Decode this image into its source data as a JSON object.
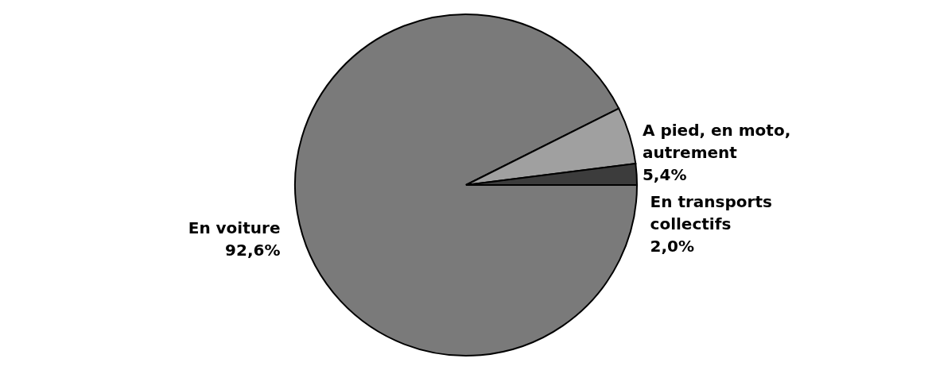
{
  "chart_data": {
    "type": "pie",
    "categories": [
      "En voiture",
      "A pied, en moto, autrement",
      "En transports collectifs"
    ],
    "values": [
      92.6,
      5.4,
      2.0
    ],
    "value_labels": [
      "92,6%",
      "5,4%",
      "2,0%"
    ],
    "colors": [
      "#7a7a7a",
      "#a0a0a0",
      "#3c3c3c"
    ]
  }
}
